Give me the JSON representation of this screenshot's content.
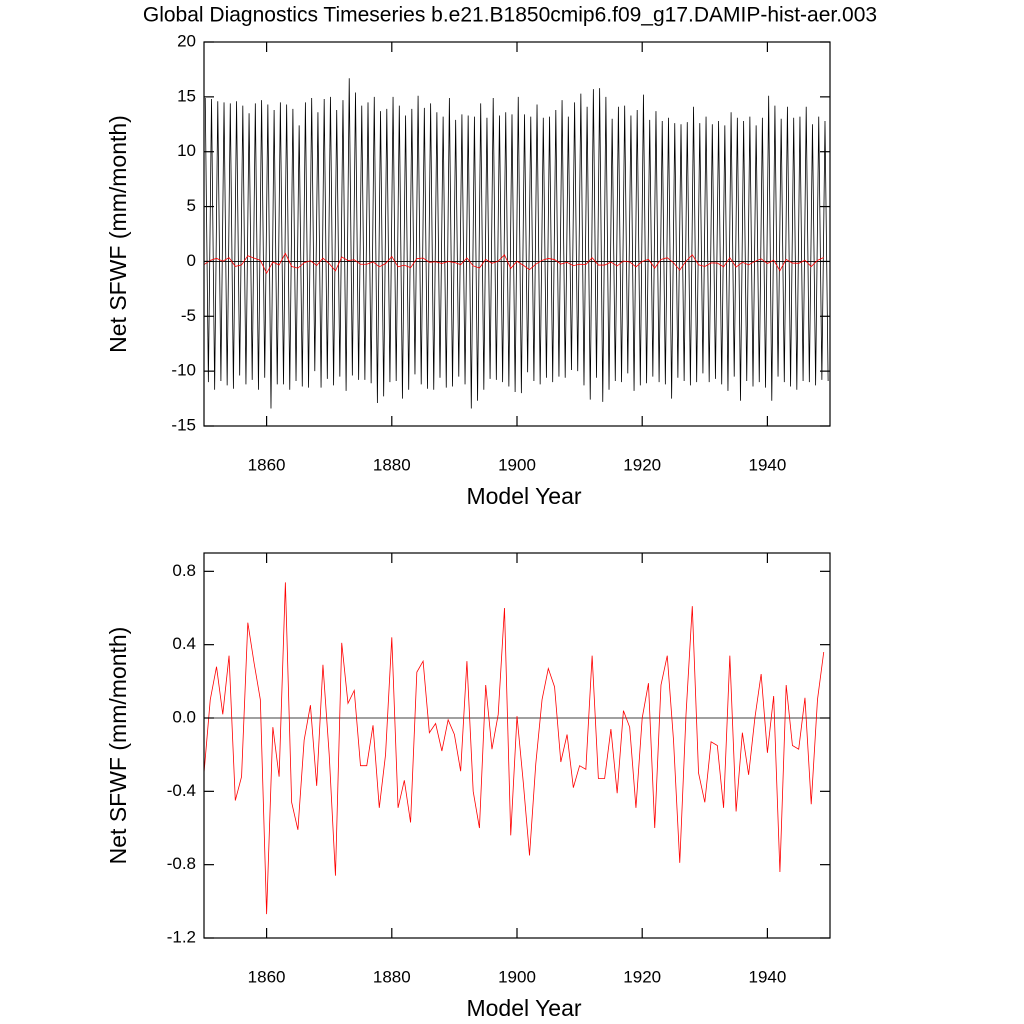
{
  "chart_data": [
    {
      "type": "line",
      "title": "Global Diagnostics Timeseries b.e21.B1850cmip6.f09_g17.DAMIP-hist-aer.003",
      "xlabel": "Model Year",
      "ylabel": "Net SFWF (mm/month)",
      "xlim": [
        1850,
        1950
      ],
      "xticks": [
        1860,
        1880,
        1900,
        1920,
        1940
      ],
      "ylim": [
        -15,
        20
      ],
      "yticks": [
        -15,
        -10,
        -5,
        0,
        5,
        10,
        15,
        20
      ],
      "zero_line": true,
      "series": [
        {
          "color": "#000000",
          "x": [
            1850.2,
            1850.7,
            1851.2,
            1851.7,
            1852.2,
            1852.7,
            1853.2,
            1853.7,
            1854.2,
            1854.7,
            1855.2,
            1855.7,
            1856.2,
            1856.7,
            1857.2,
            1857.7,
            1858.2,
            1858.7,
            1859.2,
            1859.7,
            1860.2,
            1860.7,
            1861.2,
            1861.7,
            1862.2,
            1862.7,
            1863.2,
            1863.7,
            1864.2,
            1864.7,
            1865.2,
            1865.7,
            1866.2,
            1866.7,
            1867.2,
            1867.7,
            1868.2,
            1868.7,
            1869.2,
            1869.7,
            1870.2,
            1870.7,
            1871.2,
            1871.7,
            1872.2,
            1872.7,
            1873.2,
            1873.7,
            1874.2,
            1874.7,
            1875.2,
            1875.7,
            1876.2,
            1876.7,
            1877.2,
            1877.7,
            1878.2,
            1878.7,
            1879.2,
            1879.7,
            1880.2,
            1880.7,
            1881.2,
            1881.7,
            1882.2,
            1882.7,
            1883.2,
            1883.7,
            1884.2,
            1884.7,
            1885.2,
            1885.7,
            1886.2,
            1886.7,
            1887.2,
            1887.7,
            1888.2,
            1888.7,
            1889.2,
            1889.7,
            1890.2,
            1890.7,
            1891.2,
            1891.7,
            1892.2,
            1892.7,
            1893.2,
            1893.7,
            1894.2,
            1894.7,
            1895.2,
            1895.7,
            1896.2,
            1896.7,
            1897.2,
            1897.7,
            1898.2,
            1898.7,
            1899.2,
            1899.7,
            1900.2,
            1900.7,
            1901.2,
            1901.7,
            1902.2,
            1902.7,
            1903.2,
            1903.7,
            1904.2,
            1904.7,
            1905.2,
            1905.7,
            1906.2,
            1906.7,
            1907.2,
            1907.7,
            1908.2,
            1908.7,
            1909.2,
            1909.7,
            1910.2,
            1910.7,
            1911.2,
            1911.7,
            1912.2,
            1912.7,
            1913.2,
            1913.7,
            1914.2,
            1914.7,
            1915.2,
            1915.7,
            1916.2,
            1916.7,
            1917.2,
            1917.7,
            1918.2,
            1918.7,
            1919.2,
            1919.7,
            1920.2,
            1920.7,
            1921.2,
            1921.7,
            1922.2,
            1922.7,
            1923.2,
            1923.7,
            1924.2,
            1924.7,
            1925.2,
            1925.7,
            1926.2,
            1926.7,
            1927.2,
            1927.7,
            1928.2,
            1928.7,
            1929.2,
            1929.7,
            1930.2,
            1930.7,
            1931.2,
            1931.7,
            1932.2,
            1932.7,
            1933.2,
            1933.7,
            1934.2,
            1934.7,
            1935.2,
            1935.7,
            1936.2,
            1936.7,
            1937.2,
            1937.7,
            1938.2,
            1938.7,
            1939.2,
            1939.7,
            1940.2,
            1940.7,
            1941.2,
            1941.7,
            1942.2,
            1942.7,
            1943.2,
            1943.7,
            1944.2,
            1944.7,
            1945.2,
            1945.7,
            1946.2,
            1946.7,
            1947.2,
            1947.7,
            1948.2,
            1948.7,
            1949.2,
            1949.7
          ],
          "values": [
            14.9,
            -11.0,
            14.8,
            -11.7,
            14.6,
            -10.9,
            14.5,
            -11.3,
            14.4,
            -11.6,
            14.6,
            -10.4,
            14.2,
            -11.2,
            13.5,
            -10.8,
            14.4,
            -11.7,
            14.7,
            -10.6,
            14.3,
            -13.4,
            13.8,
            -11.2,
            14.5,
            -11.2,
            14.3,
            -11.7,
            13.9,
            -10.9,
            12.4,
            -11.4,
            14.5,
            -11.5,
            14.9,
            -10.0,
            13.6,
            -11.5,
            14.8,
            -10.7,
            15.0,
            -11.3,
            13.8,
            -10.5,
            14.7,
            -11.8,
            16.7,
            -10.4,
            15.4,
            -10.8,
            14.2,
            -10.8,
            14.5,
            -11.1,
            15.0,
            -12.9,
            13.7,
            -12.3,
            13.9,
            -11.0,
            15.0,
            -10.9,
            14.2,
            -12.5,
            13.3,
            -11.7,
            13.9,
            -10.3,
            15.1,
            -11.2,
            14.0,
            -11.6,
            14.4,
            -11.7,
            13.6,
            -10.6,
            13.2,
            -11.5,
            14.9,
            -11.4,
            12.9,
            -10.5,
            13.4,
            -11.2,
            13.3,
            -13.4,
            13.2,
            -12.7,
            14.4,
            -11.7,
            13.1,
            -10.7,
            14.9,
            -10.8,
            13.3,
            -11.0,
            13.6,
            -11.4,
            13.4,
            -11.9,
            15.0,
            -12.0,
            13.4,
            -10.1,
            13.2,
            -10.9,
            14.3,
            -11.2,
            13.1,
            -10.6,
            13.2,
            -11.0,
            13.8,
            -10.5,
            14.7,
            -10.6,
            13.2,
            -9.9,
            14.5,
            -10.0,
            15.3,
            -11.3,
            14.1,
            -12.6,
            15.7,
            -10.6,
            15.8,
            -12.8,
            15.0,
            -11.7,
            13.0,
            -10.9,
            14.1,
            -11.0,
            14.2,
            -10.2,
            13.3,
            -11.8,
            13.8,
            -11.3,
            15.2,
            -11.1,
            12.9,
            -10.5,
            13.7,
            -11.0,
            12.8,
            -11.2,
            13.1,
            -12.5,
            12.6,
            -10.6,
            12.5,
            -10.9,
            12.7,
            -11.3,
            14.1,
            -11.0,
            12.6,
            -10.2,
            13.2,
            -11.0,
            12.5,
            -10.7,
            12.8,
            -11.2,
            12.4,
            -11.8,
            13.6,
            -10.5,
            13.1,
            -12.7,
            12.8,
            -10.9,
            13.2,
            -11.4,
            12.4,
            -11.0,
            13.1,
            -11.5,
            15.1,
            -12.7,
            14.2,
            -10.5,
            13.0,
            -11.0,
            14.1,
            -11.4,
            13.1,
            -11.7,
            13.2,
            -10.9,
            14.1,
            -11.0,
            12.5,
            -11.3,
            13.2,
            -10.8,
            12.8,
            -10.9
          ]
        },
        {
          "color": "#ff0000",
          "x": [
            1850,
            1851,
            1852,
            1853,
            1854,
            1855,
            1856,
            1857,
            1858,
            1859,
            1860,
            1861,
            1862,
            1863,
            1864,
            1865,
            1866,
            1867,
            1868,
            1869,
            1870,
            1871,
            1872,
            1873,
            1874,
            1875,
            1876,
            1877,
            1878,
            1879,
            1880,
            1881,
            1882,
            1883,
            1884,
            1885,
            1886,
            1887,
            1888,
            1889,
            1890,
            1891,
            1892,
            1893,
            1894,
            1895,
            1896,
            1897,
            1898,
            1899,
            1900,
            1901,
            1902,
            1903,
            1904,
            1905,
            1906,
            1907,
            1908,
            1909,
            1910,
            1911,
            1912,
            1913,
            1914,
            1915,
            1916,
            1917,
            1918,
            1919,
            1920,
            1921,
            1922,
            1923,
            1924,
            1925,
            1926,
            1927,
            1928,
            1929,
            1930,
            1931,
            1932,
            1933,
            1934,
            1935,
            1936,
            1937,
            1938,
            1939,
            1940,
            1941,
            1942,
            1943,
            1944,
            1945,
            1946,
            1947,
            1948,
            1949
          ],
          "values": [
            -0.3,
            0.1,
            0.28,
            0.02,
            0.34,
            -0.45,
            -0.32,
            0.52,
            0.3,
            0.1,
            -1.07,
            -0.05,
            -0.32,
            0.74,
            -0.46,
            -0.61,
            -0.12,
            0.07,
            -0.37,
            0.29,
            -0.2,
            -0.86,
            0.41,
            0.08,
            0.15,
            -0.26,
            -0.26,
            -0.04,
            -0.49,
            -0.2,
            0.44,
            -0.49,
            -0.34,
            -0.57,
            0.25,
            0.31,
            -0.08,
            -0.03,
            -0.18,
            -0.01,
            -0.09,
            -0.29,
            0.31,
            -0.4,
            -0.6,
            0.18,
            -0.17,
            0.02,
            0.6,
            -0.64,
            0.01,
            -0.35,
            -0.75,
            -0.25,
            0.1,
            0.27,
            0.17,
            -0.24,
            -0.09,
            -0.38,
            -0.26,
            -0.28,
            0.34,
            -0.33,
            -0.33,
            -0.06,
            -0.41,
            0.04,
            -0.05,
            -0.49,
            0.0,
            0.19,
            -0.6,
            0.18,
            0.34,
            -0.12,
            -0.79,
            0.02,
            0.61,
            -0.3,
            -0.46,
            -0.13,
            -0.15,
            -0.49,
            0.34,
            -0.51,
            -0.08,
            -0.31,
            0.0,
            0.24,
            -0.19,
            0.12,
            -0.84,
            0.18,
            -0.15,
            -0.17,
            0.11,
            -0.47,
            0.1,
            0.36
          ]
        }
      ]
    },
    {
      "type": "line",
      "xlabel": "Model Year",
      "ylabel": "Net SFWF (mm/month)",
      "xlim": [
        1850,
        1950
      ],
      "xticks": [
        1860,
        1880,
        1900,
        1920,
        1940
      ],
      "ylim": [
        -1.2,
        0.9
      ],
      "yticks": [
        -1.2,
        -0.8,
        -0.4,
        {
          "value": 0,
          "label": "0.0"
        },
        0.4,
        0.8
      ],
      "zero_line": true,
      "series": [
        {
          "color": "#ff0000",
          "x": [
            1850,
            1851,
            1852,
            1853,
            1854,
            1855,
            1856,
            1857,
            1858,
            1859,
            1860,
            1861,
            1862,
            1863,
            1864,
            1865,
            1866,
            1867,
            1868,
            1869,
            1870,
            1871,
            1872,
            1873,
            1874,
            1875,
            1876,
            1877,
            1878,
            1879,
            1880,
            1881,
            1882,
            1883,
            1884,
            1885,
            1886,
            1887,
            1888,
            1889,
            1890,
            1891,
            1892,
            1893,
            1894,
            1895,
            1896,
            1897,
            1898,
            1899,
            1900,
            1901,
            1902,
            1903,
            1904,
            1905,
            1906,
            1907,
            1908,
            1909,
            1910,
            1911,
            1912,
            1913,
            1914,
            1915,
            1916,
            1917,
            1918,
            1919,
            1920,
            1921,
            1922,
            1923,
            1924,
            1925,
            1926,
            1927,
            1928,
            1929,
            1930,
            1931,
            1932,
            1933,
            1934,
            1935,
            1936,
            1937,
            1938,
            1939,
            1940,
            1941,
            1942,
            1943,
            1944,
            1945,
            1946,
            1947,
            1948,
            1949
          ],
          "values": [
            -0.3,
            0.1,
            0.28,
            0.02,
            0.34,
            -0.45,
            -0.32,
            0.52,
            0.3,
            0.1,
            -1.07,
            -0.05,
            -0.32,
            0.74,
            -0.46,
            -0.61,
            -0.12,
            0.07,
            -0.37,
            0.29,
            -0.2,
            -0.86,
            0.41,
            0.08,
            0.15,
            -0.26,
            -0.26,
            -0.04,
            -0.49,
            -0.2,
            0.44,
            -0.49,
            -0.34,
            -0.57,
            0.25,
            0.31,
            -0.08,
            -0.03,
            -0.18,
            -0.01,
            -0.09,
            -0.29,
            0.31,
            -0.4,
            -0.6,
            0.18,
            -0.17,
            0.02,
            0.6,
            -0.64,
            0.01,
            -0.35,
            -0.75,
            -0.25,
            0.1,
            0.27,
            0.17,
            -0.24,
            -0.09,
            -0.38,
            -0.26,
            -0.28,
            0.34,
            -0.33,
            -0.33,
            -0.06,
            -0.41,
            0.04,
            -0.05,
            -0.49,
            0.0,
            0.19,
            -0.6,
            0.18,
            0.34,
            -0.12,
            -0.79,
            0.02,
            0.61,
            -0.3,
            -0.46,
            -0.13,
            -0.15,
            -0.49,
            0.34,
            -0.51,
            -0.08,
            -0.31,
            0.0,
            0.24,
            -0.19,
            0.12,
            -0.84,
            0.18,
            -0.15,
            -0.17,
            0.11,
            -0.47,
            0.1,
            0.36
          ]
        }
      ]
    }
  ]
}
